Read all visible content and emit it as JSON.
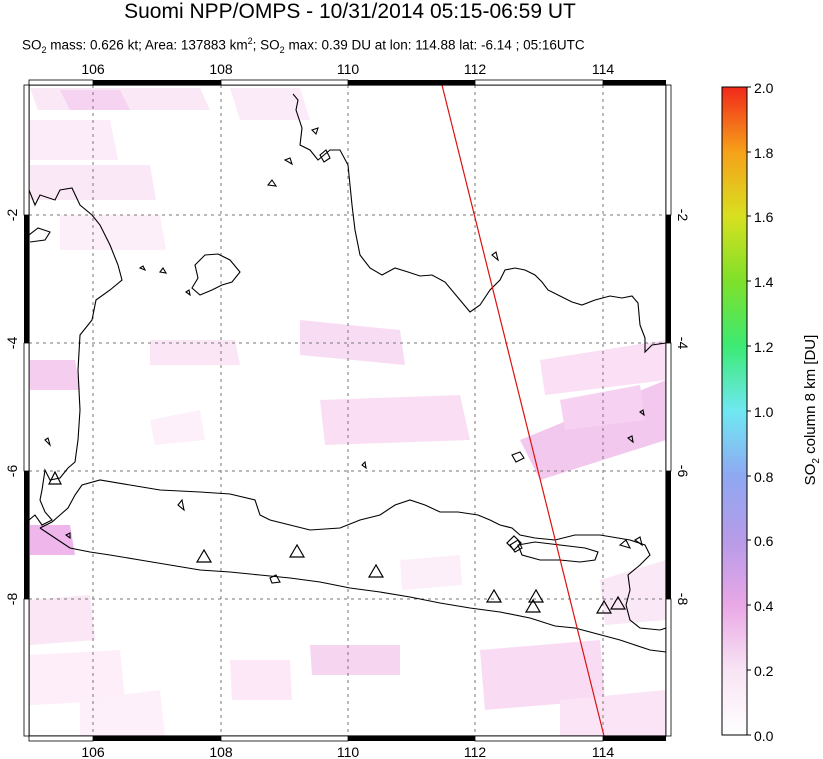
{
  "header": {
    "title": "Suomi NPP/OMPS - 10/31/2014 05:15-06:59 UT",
    "subtitle_prefix": "SO",
    "subtitle_sub": "2",
    "subtitle_mid": " mass: 0.626 kt; Area: 137883 km",
    "subtitle_sup": "2",
    "subtitle_mid2": "; SO",
    "subtitle_sub2": "2",
    "subtitle_rest": " max: 0.39 DU at lon: 114.88 lat: -6.14 ; 05:16UTC"
  },
  "map": {
    "lon_ticks": [
      "106",
      "108",
      "110",
      "112",
      "114"
    ],
    "lat_ticks": [
      "-2",
      "-4",
      "-6",
      "-8"
    ],
    "lon_range": [
      105,
      115
    ],
    "lat_range": [
      -10.2,
      0
    ]
  },
  "colorbar": {
    "ticks": [
      "2.0",
      "1.8",
      "1.6",
      "1.4",
      "1.2",
      "1.0",
      "0.8",
      "0.6",
      "0.4",
      "0.2",
      "0.0"
    ],
    "label_pre": "SO",
    "label_sub": "2",
    "label_post": " column 8 km [DU]",
    "range": [
      0,
      2
    ]
  },
  "colors": {
    "coast": "#000000",
    "grid": "#777777",
    "orbit_line": "#dd1111",
    "so2_low": "#f7d6f0"
  }
}
